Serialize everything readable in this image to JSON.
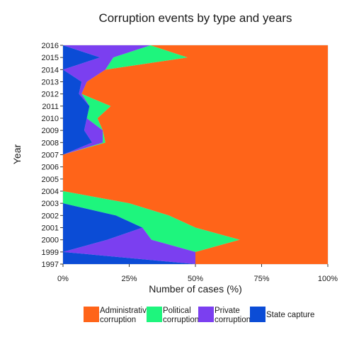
{
  "chart_data": {
    "type": "area",
    "title": "Corruption events by type and years",
    "xlabel": "Number of cases (%)",
    "ylabel": "Year",
    "x_ticks": [
      "0%",
      "25%",
      "50%",
      "75%",
      "100%"
    ],
    "xlim": [
      0,
      100
    ],
    "categories": [
      "1997",
      "1999",
      "2000",
      "2001",
      "2002",
      "2003",
      "2004",
      "2005",
      "2006",
      "2007",
      "2008",
      "2009",
      "2010",
      "2011",
      "2012",
      "2013",
      "2014",
      "2015",
      "2016"
    ],
    "stacking": "percent, stacked from the right: Administrative corruption, Political corruption, Private corruption, State capture",
    "series": [
      {
        "name": "Administrative corruption",
        "color": "#FF6419",
        "values": [
          50,
          50,
          33.3,
          50,
          60,
          75,
          100,
          100,
          100,
          100,
          84,
          85,
          87,
          82,
          93,
          91,
          84,
          53,
          67
        ]
      },
      {
        "name": "Political corruption",
        "color": "#1EF57D",
        "values": [
          0,
          0,
          33.3,
          20,
          20,
          25,
          0,
          0,
          0,
          0,
          1,
          0,
          4,
          8,
          0,
          0,
          0,
          28,
          0
        ]
      },
      {
        "name": "Private corruption",
        "color": "#7B3FF0",
        "values": [
          0,
          50,
          16.7,
          0,
          0,
          0,
          0,
          0,
          0,
          0,
          4,
          7,
          0,
          0,
          1,
          2,
          16,
          5,
          33
        ]
      },
      {
        "name": "State capture",
        "color": "#0B4CD6",
        "values": [
          50,
          0,
          16.7,
          30,
          20,
          0,
          0,
          0,
          0,
          0,
          11,
          8,
          9,
          10,
          6,
          7,
          0,
          14,
          0
        ]
      }
    ],
    "grid": true,
    "legend_position": "bottom"
  },
  "legend": {
    "items": [
      {
        "label_lines": [
          "Administrative",
          "corruption"
        ],
        "color": "#FF6419"
      },
      {
        "label_lines": [
          "Political",
          "corruption"
        ],
        "color": "#1EF57D"
      },
      {
        "label_lines": [
          "Private",
          "corruption"
        ],
        "color": "#7B3FF0"
      },
      {
        "label_lines": [
          "State capture"
        ],
        "color": "#0B4CD6"
      }
    ]
  }
}
